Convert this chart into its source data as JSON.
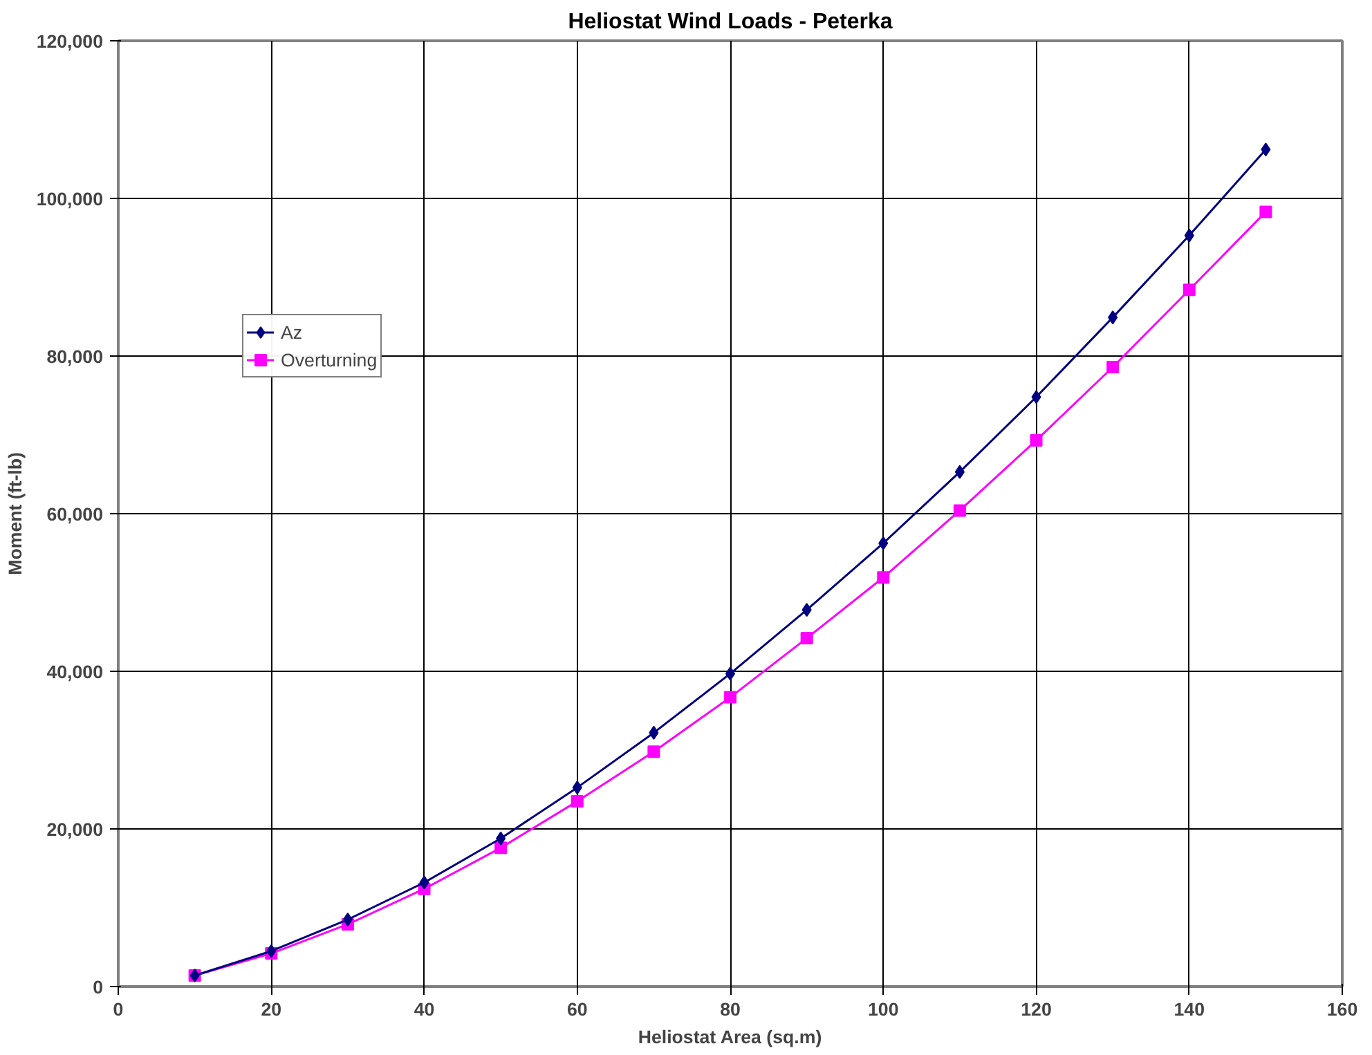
{
  "chart_data": {
    "type": "line",
    "title": "Heliostat Wind Loads - Peterka",
    "xlabel": "Heliostat Area (sq.m)",
    "ylabel": "Moment (ft-lb)",
    "x": [
      10,
      20,
      30,
      40,
      50,
      60,
      70,
      80,
      90,
      100,
      110,
      120,
      130,
      140,
      150
    ],
    "series": [
      {
        "name": "Az",
        "color": "#000080",
        "marker": "diamond",
        "values": [
          1400,
          4500,
          8500,
          13200,
          18800,
          25250,
          32200,
          39700,
          47800,
          56250,
          65300,
          74800,
          84900,
          95300,
          106200
        ]
      },
      {
        "name": "Overturning",
        "color": "#ff00ff",
        "marker": "square",
        "values": [
          1400,
          4200,
          7900,
          12400,
          17600,
          23500,
          29800,
          36700,
          44200,
          51900,
          60400,
          69300,
          78600,
          88400,
          98300
        ]
      }
    ],
    "xlim": [
      0,
      160
    ],
    "xticks": [
      0,
      20,
      40,
      60,
      80,
      100,
      120,
      140,
      160
    ],
    "ylim": [
      0,
      120000
    ],
    "yticks": [
      {
        "value": 0,
        "label": "0"
      },
      {
        "value": 20000,
        "label": "20,000"
      },
      {
        "value": 40000,
        "label": "40,000"
      },
      {
        "value": 60000,
        "label": "60,000"
      },
      {
        "value": 80000,
        "label": "80,000"
      },
      {
        "value": 100000,
        "label": "100,000"
      },
      {
        "value": 120000,
        "label": "120,000"
      }
    ],
    "grid": true,
    "legend": "top left",
    "line_style": "solid"
  }
}
